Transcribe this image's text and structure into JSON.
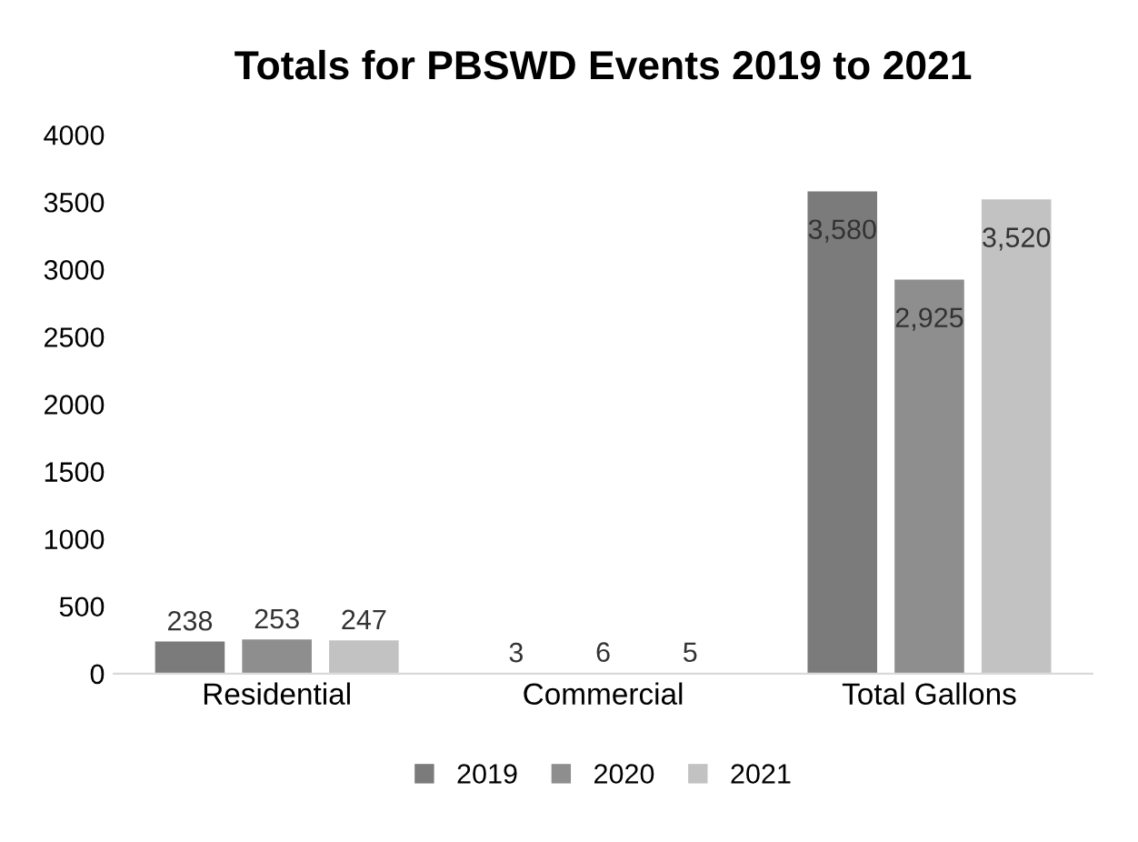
{
  "chart_data": {
    "type": "bar",
    "title": "Totals for PBSWD Events 2019 to 2021",
    "categories": [
      "Residential",
      "Commercial",
      "Total Gallons"
    ],
    "series": [
      {
        "name": "2019",
        "color": "#7b7b7b",
        "values": [
          238,
          3,
          3580
        ],
        "value_labels": [
          "238",
          "3",
          "3,580"
        ]
      },
      {
        "name": "2020",
        "color": "#8e8e8e",
        "values": [
          253,
          6,
          2925
        ],
        "value_labels": [
          "253",
          "6",
          "2,925"
        ]
      },
      {
        "name": "2021",
        "color": "#c2c2c2",
        "values": [
          247,
          5,
          3520
        ],
        "value_labels": [
          "247",
          "5",
          "3,520"
        ]
      }
    ],
    "ylim": [
      0,
      4000
    ],
    "yticks": [
      0,
      500,
      1000,
      1500,
      2000,
      2500,
      3000,
      3500,
      4000
    ],
    "grid": false,
    "legend": "bottom"
  }
}
